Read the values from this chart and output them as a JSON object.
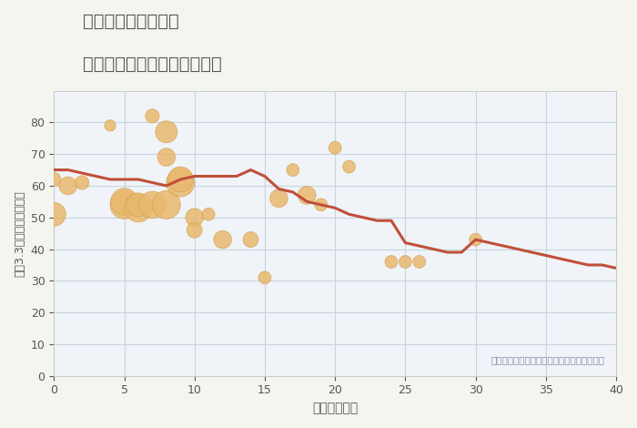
{
  "title_line1": "三重県松阪市櫛田町",
  "title_line2": "築年数別中古マンション価格",
  "xlabel": "築年数（年）",
  "ylabel": "平（3.3㎡）単価（万円）",
  "annotation": "円の大きさは、取引のあった物件面積を示す",
  "background_color": "#f5f5f0",
  "plot_bg_color": "#f0f4f8",
  "grid_color": "#c8d4e0",
  "line_color": "#c0503a",
  "scatter_color": "#e8b86d",
  "scatter_edge_color": "#d4a050",
  "xlim": [
    0,
    40
  ],
  "ylim": [
    0,
    90
  ],
  "xticks": [
    0,
    5,
    10,
    15,
    20,
    25,
    30,
    35,
    40
  ],
  "yticks": [
    0,
    10,
    20,
    30,
    40,
    50,
    60,
    70,
    80
  ],
  "line_x": [
    0,
    1,
    2,
    3,
    4,
    5,
    6,
    7,
    8,
    9,
    10,
    11,
    12,
    13,
    14,
    15,
    16,
    17,
    18,
    19,
    20,
    21,
    22,
    23,
    24,
    25,
    26,
    27,
    28,
    29,
    30,
    31,
    32,
    33,
    34,
    35,
    36,
    37,
    38,
    39,
    40
  ],
  "line_y": [
    65,
    65,
    64,
    63,
    62,
    62,
    62,
    61,
    60,
    62,
    63,
    63,
    63,
    63,
    65,
    63,
    59,
    58,
    55,
    54,
    53,
    51,
    50,
    49,
    49,
    42,
    41,
    40,
    39,
    39,
    43,
    42,
    41,
    40,
    39,
    38,
    37,
    36,
    35,
    35,
    34
  ],
  "scatter_x": [
    0,
    0,
    1,
    2,
    4,
    5,
    5,
    6,
    6,
    7,
    7,
    8,
    8,
    8,
    9,
    9,
    10,
    10,
    11,
    12,
    14,
    15,
    16,
    17,
    18,
    19,
    20,
    21,
    24,
    25,
    26,
    30
  ],
  "scatter_y": [
    51,
    62,
    60,
    61,
    79,
    54,
    55,
    53,
    54,
    54,
    82,
    54,
    69,
    77,
    61,
    62,
    50,
    46,
    51,
    43,
    43,
    31,
    56,
    65,
    57,
    54,
    72,
    66,
    36,
    36,
    36,
    43
  ],
  "scatter_size": [
    350,
    120,
    200,
    120,
    80,
    500,
    450,
    500,
    350,
    450,
    120,
    500,
    200,
    300,
    500,
    400,
    200,
    150,
    100,
    200,
    150,
    100,
    200,
    100,
    200,
    100,
    100,
    100,
    100,
    100,
    100,
    100
  ]
}
